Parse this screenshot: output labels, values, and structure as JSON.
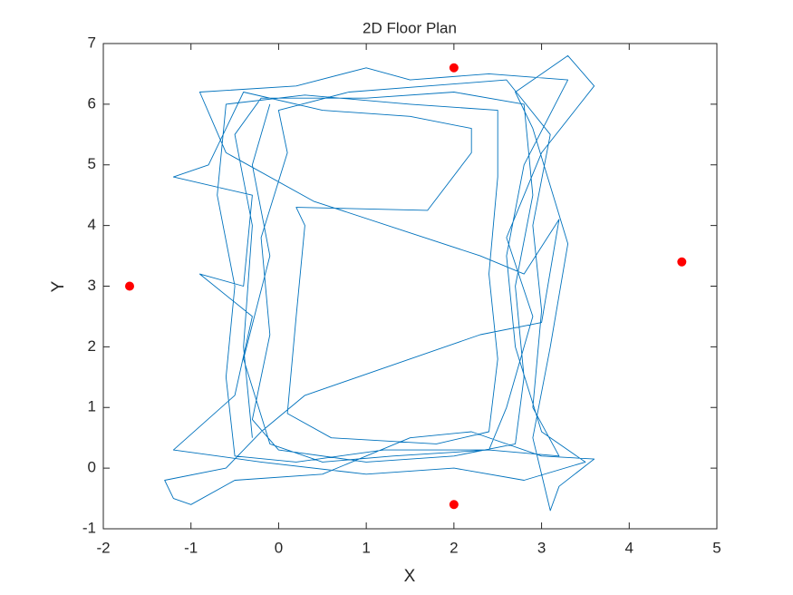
{
  "chart_data": {
    "type": "line",
    "title": "2D Floor Plan",
    "x_label": "X",
    "y_label": "Y",
    "xlim": [
      -2,
      5
    ],
    "ylim": [
      -1,
      7
    ],
    "xticks": [
      -2,
      -1,
      0,
      1,
      2,
      3,
      4,
      5
    ],
    "yticks": [
      -1,
      0,
      1,
      2,
      3,
      4,
      5,
      6,
      7
    ],
    "grid": false,
    "series": [
      {
        "type": "line",
        "color": "#0072bd",
        "x": [
          -0.3,
          -0.4,
          -0.3,
          -0.5,
          -0.2,
          1,
          2,
          2.8,
          2.9,
          2.7,
          2.8,
          2.7,
          2,
          1,
          0,
          -0.3,
          -0.1,
          -0.2,
          0.1,
          0,
          0.8,
          1.7,
          2.6,
          3.1,
          2.9,
          3,
          2.9,
          3.2,
          2.4,
          1.2,
          0.2,
          -0.5,
          -0.6,
          -0.5,
          -0.7,
          -0.6,
          0.3,
          1.5,
          2.5,
          2.5,
          2.4,
          2.5,
          2.4,
          1.8,
          0.6,
          0.1,
          0.2,
          0.3,
          0.2,
          1.7,
          2.2,
          2.2,
          1.5,
          0.5,
          -0.4,
          -0.8,
          -1.2,
          -0.3,
          -0.4,
          -0.9,
          -0.3,
          -0.5,
          -1.2,
          -0.2,
          1,
          2,
          2.8,
          3.5,
          3.0,
          2.7,
          2.6,
          2.8,
          3.3,
          2.4,
          1.5,
          1,
          0.2,
          -0.9,
          -0.6,
          0.4,
          2.3,
          2.8,
          3.2,
          3.0,
          2.3,
          0.3,
          -0.2,
          -0.6,
          -1.3,
          -1.2,
          -1.0,
          -0.5,
          0.5,
          1.5,
          2.2,
          3.0,
          3.6,
          3.2,
          3.1,
          2.9,
          3.1,
          3.3,
          2.9,
          2.7,
          3.3,
          3.6,
          3.0,
          2.6,
          2.9,
          2.6,
          2.4,
          1.3,
          0.5,
          -0.1,
          -0.4,
          -0.1,
          -0.3,
          -0.1
        ],
        "values": [
          0.5,
          2,
          4,
          5.5,
          6.1,
          6.1,
          6.2,
          6.0,
          4.5,
          3,
          1.5,
          0.4,
          0.2,
          0.1,
          0.3,
          0.8,
          2.2,
          3.8,
          5.2,
          5.9,
          6.2,
          6.3,
          6.4,
          5.5,
          4,
          2.6,
          1,
          0.2,
          0.3,
          0.3,
          0.1,
          0.2,
          1.5,
          3,
          4.5,
          6,
          6.15,
          6.0,
          5.9,
          4.8,
          3.2,
          1.8,
          0.6,
          0.4,
          0.5,
          0.9,
          2.5,
          4,
          4.3,
          4.25,
          5.2,
          5.6,
          5.8,
          5.9,
          6.2,
          5,
          4.8,
          4.5,
          3,
          3.2,
          2.5,
          1.2,
          0.3,
          0.1,
          -0.1,
          0,
          -0.2,
          0.1,
          0.6,
          2,
          3.5,
          5,
          6.4,
          6.5,
          6.4,
          6.6,
          6.3,
          6.2,
          5.2,
          4.4,
          3.5,
          3.2,
          4.1,
          2.4,
          2.2,
          1.2,
          0.6,
          0,
          -0.2,
          -0.5,
          -0.6,
          -0.2,
          -0.1,
          0.5,
          0.6,
          0.2,
          0.15,
          -0.3,
          -0.7,
          0.5,
          2.0,
          3.7,
          5.6,
          6.2,
          6.8,
          6.3,
          5.2,
          3.8,
          2.5,
          1.0,
          0.3,
          0.2,
          0.1,
          0.4,
          1.8,
          3.5,
          5.0,
          6.0
        ]
      },
      {
        "type": "scatter",
        "color": "#ff0000",
        "x": [
          -1.7,
          2,
          4.6,
          2
        ],
        "values": [
          3,
          6.6,
          3.4,
          -0.6
        ]
      }
    ]
  }
}
